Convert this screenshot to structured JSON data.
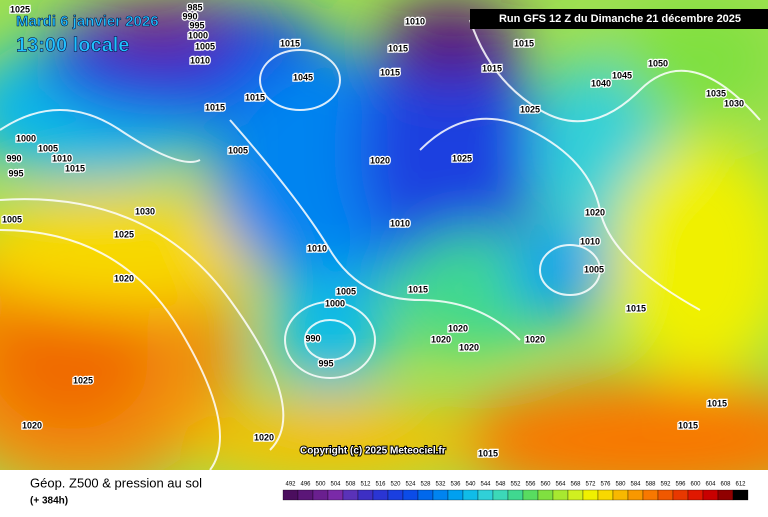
{
  "header": {
    "date": "Mardi 6 janvier 2026",
    "time": "13:00 locale",
    "run": "Run GFS 12 Z du Dimanche 21 décembre 2025"
  },
  "footer": {
    "title": "Géop. Z500 & pression au sol",
    "lead": "(+ 384h)",
    "copyright": "Copyright (c) 2025 Meteociel.fr"
  },
  "isobar_labels": [
    "1025",
    "985",
    "990",
    "995",
    "1000",
    "1005",
    "1010",
    "1010",
    "1015",
    "1045",
    "1015",
    "1015",
    "1015",
    "1015",
    "1005",
    "1000",
    "1005",
    "1010",
    "1015",
    "995",
    "990",
    "1030",
    "1025",
    "1020",
    "1005",
    "1025",
    "1020",
    "1020",
    "1020",
    "1025",
    "1015",
    "1025",
    "1015",
    "1045",
    "1050",
    "1040",
    "1035",
    "1030",
    "1020",
    "1010",
    "1005",
    "1015",
    "1010",
    "1005",
    "1000",
    "990",
    "995",
    "1015",
    "1020",
    "1020",
    "1020",
    "1020",
    "1015",
    "1015",
    "1010",
    "1015"
  ],
  "legend": {
    "values": [
      492,
      496,
      500,
      504,
      508,
      512,
      516,
      520,
      524,
      528,
      532,
      536,
      540,
      544,
      548,
      552,
      556,
      560,
      564,
      568,
      572,
      576,
      580,
      584,
      588,
      592,
      596,
      600,
      604,
      608,
      612
    ],
    "colors": [
      "#4b0e5e",
      "#5b1678",
      "#6a1f8f",
      "#7a2aa8",
      "#5a32b8",
      "#3d2fc4",
      "#2a35d4",
      "#1a3fe0",
      "#0b4ce8",
      "#0068ec",
      "#0084f0",
      "#00a0f0",
      "#10bce8",
      "#30d0d8",
      "#3cd8b8",
      "#40d890",
      "#58dc60",
      "#80e040",
      "#a8e830",
      "#d0f020",
      "#f0f000",
      "#f8d800",
      "#f8b800",
      "#f89800",
      "#f87800",
      "#f05800",
      "#e83800",
      "#e01800",
      "#c80000",
      "#900000",
      "#000000"
    ]
  }
}
